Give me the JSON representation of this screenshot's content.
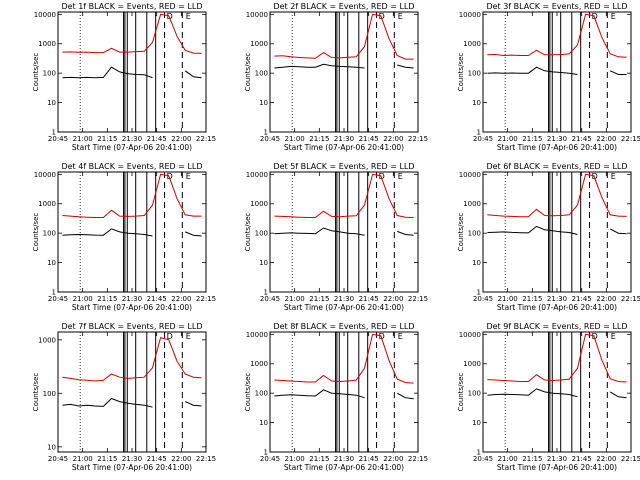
{
  "chart_data": [
    {
      "type": "line",
      "title": "Det 1f BLACK = Events, RED = LLD",
      "xlabel": "Start Time (07-Apr-06 20:41:00)",
      "ylabel": "Counts/sec",
      "x_ticks": [
        "20:45",
        "21:00",
        "21:15",
        "21:30",
        "21:45",
        "22:00",
        "22:15"
      ],
      "y_ticks": [
        "1",
        "10",
        "100",
        "1000",
        "10000"
      ],
      "ylim": [
        1,
        12000
      ],
      "log_y": true,
      "marker_labels": [
        "D",
        "E"
      ],
      "series": [
        {
          "color": "#d00000",
          "values": [
            520,
            530,
            510,
            520,
            500,
            500,
            700,
            520,
            520,
            540,
            560,
            1100,
            10000,
            9000,
            1800,
            600,
            480,
            470
          ]
        },
        {
          "color": "#000000",
          "values": [
            70,
            72,
            70,
            72,
            70,
            72,
            160,
            110,
            95,
            90,
            88,
            70,
            null,
            null,
            null,
            120,
            75,
            70
          ]
        }
      ]
    },
    {
      "type": "line",
      "title": "Det 2f BLACK = Events, RED = LLD",
      "xlabel": "Start Time (07-Apr-06 20:41:00)",
      "ylabel": "Counts/sec",
      "x_ticks": [
        "20:45",
        "21:00",
        "21:15",
        "21:30",
        "21:45",
        "22:00",
        "22:15"
      ],
      "y_ticks": [
        "1",
        "10",
        "100",
        "1000",
        "10000"
      ],
      "ylim": [
        1,
        12000
      ],
      "log_y": true,
      "marker_labels": [
        "D",
        "E"
      ],
      "series": [
        {
          "color": "#d00000",
          "values": [
            380,
            390,
            360,
            340,
            330,
            320,
            500,
            340,
            330,
            350,
            360,
            800,
            10000,
            9000,
            1500,
            400,
            300,
            300
          ]
        },
        {
          "color": "#000000",
          "values": [
            150,
            160,
            170,
            165,
            160,
            160,
            200,
            180,
            170,
            165,
            160,
            150,
            null,
            null,
            null,
            190,
            160,
            150
          ]
        }
      ]
    },
    {
      "type": "line",
      "title": "Det 3f BLACK = Events, RED = LLD",
      "xlabel": "Start Time (07-Apr-06 20:41:00)",
      "ylabel": "Counts/sec",
      "x_ticks": [
        "20:45",
        "21:00",
        "21:15",
        "21:30",
        "21:45",
        "22:00",
        "22:15"
      ],
      "y_ticks": [
        "1",
        "10",
        "100",
        "1000",
        "10000"
      ],
      "ylim": [
        1,
        12000
      ],
      "log_y": true,
      "marker_labels": [
        "D",
        "E"
      ],
      "series": [
        {
          "color": "#d00000",
          "values": [
            420,
            430,
            400,
            410,
            400,
            400,
            600,
            420,
            420,
            430,
            450,
            900,
            10000,
            9000,
            1600,
            450,
            360,
            350
          ]
        },
        {
          "color": "#000000",
          "values": [
            100,
            102,
            100,
            101,
            100,
            100,
            160,
            120,
            110,
            105,
            100,
            90,
            null,
            null,
            null,
            120,
            90,
            90
          ]
        }
      ]
    },
    {
      "type": "line",
      "title": "Det 4f BLACK = Events, RED = LLD",
      "xlabel": "Start Time (07-Apr-06 20:41:00)",
      "ylabel": "Counts/sec",
      "x_ticks": [
        "20:45",
        "21:00",
        "21:15",
        "21:30",
        "21:45",
        "22:00",
        "22:15"
      ],
      "y_ticks": [
        "1",
        "10",
        "100",
        "1000",
        "10000"
      ],
      "ylim": [
        1,
        12000
      ],
      "log_y": true,
      "marker_labels": [
        "D",
        "E"
      ],
      "series": [
        {
          "color": "#d00000",
          "values": [
            400,
            380,
            360,
            350,
            340,
            340,
            600,
            380,
            370,
            380,
            400,
            900,
            10000,
            9000,
            1500,
            420,
            380,
            380
          ]
        },
        {
          "color": "#000000",
          "values": [
            85,
            88,
            90,
            88,
            86,
            85,
            140,
            110,
            100,
            95,
            90,
            80,
            null,
            null,
            null,
            110,
            85,
            80
          ]
        }
      ]
    },
    {
      "type": "line",
      "title": "Det 5f BLACK = Events, RED = LLD",
      "xlabel": "Start Time (07-Apr-06 20:41:00)",
      "ylabel": "Counts/sec",
      "x_ticks": [
        "20:45",
        "21:00",
        "21:15",
        "21:30",
        "21:45",
        "22:00",
        "22:15"
      ],
      "y_ticks": [
        "1",
        "10",
        "100",
        "1000",
        "10000"
      ],
      "ylim": [
        1,
        12000
      ],
      "log_y": true,
      "marker_labels": [
        "D",
        "E"
      ],
      "series": [
        {
          "color": "#d00000",
          "values": [
            380,
            370,
            360,
            350,
            340,
            340,
            560,
            370,
            360,
            380,
            390,
            900,
            10000,
            9000,
            1500,
            400,
            350,
            340
          ]
        },
        {
          "color": "#000000",
          "values": [
            95,
            100,
            102,
            100,
            98,
            95,
            150,
            120,
            110,
            100,
            95,
            85,
            null,
            null,
            null,
            115,
            90,
            85
          ]
        }
      ]
    },
    {
      "type": "line",
      "title": "Det 6f BLACK = Events, RED = LLD",
      "xlabel": "Start Time (07-Apr-06 20:41:00)",
      "ylabel": "Counts/sec",
      "x_ticks": [
        "20:45",
        "21:00",
        "21:15",
        "21:30",
        "21:45",
        "22:00",
        "22:15"
      ],
      "y_ticks": [
        "1",
        "10",
        "100",
        "1000",
        "10000"
      ],
      "ylim": [
        1,
        12000
      ],
      "log_y": true,
      "marker_labels": [
        "D",
        "E"
      ],
      "series": [
        {
          "color": "#d00000",
          "values": [
            420,
            400,
            380,
            370,
            360,
            360,
            650,
            400,
            390,
            400,
            420,
            900,
            10000,
            9000,
            1600,
            420,
            380,
            370
          ]
        },
        {
          "color": "#000000",
          "values": [
            105,
            108,
            110,
            106,
            104,
            102,
            170,
            130,
            120,
            110,
            105,
            90,
            null,
            null,
            null,
            140,
            100,
            95
          ]
        }
      ]
    },
    {
      "type": "line",
      "title": "Det 7f BLACK = Events, RED = LLD",
      "xlabel": "Start Time (07-Apr-06 20:41:00)",
      "ylabel": "Counts/sec",
      "x_ticks": [
        "20:45",
        "21:00",
        "21:15",
        "21:30",
        "21:45",
        "22:00",
        "22:15"
      ],
      "y_ticks": [
        "10",
        "100",
        "1000"
      ],
      "ylim": [
        8,
        1400
      ],
      "log_y": true,
      "marker_labels": [
        "D",
        "E"
      ],
      "series": [
        {
          "color": "#d00000",
          "values": [
            200,
            190,
            180,
            175,
            170,
            175,
            230,
            200,
            190,
            195,
            200,
            300,
            1100,
            1000,
            400,
            230,
            200,
            195
          ]
        },
        {
          "color": "#000000",
          "values": [
            60,
            62,
            58,
            60,
            58,
            57,
            80,
            70,
            65,
            62,
            60,
            55,
            null,
            null,
            null,
            70,
            60,
            58
          ]
        }
      ]
    },
    {
      "type": "line",
      "title": "Det 8f BLACK = Events, RED = LLD",
      "xlabel": "Start Time (07-Apr-06 20:41:00)",
      "ylabel": "Counts/sec",
      "x_ticks": [
        "20:45",
        "21:00",
        "21:15",
        "21:30",
        "21:45",
        "22:00",
        "22:15"
      ],
      "y_ticks": [
        "1",
        "10",
        "100",
        "1000",
        "10000"
      ],
      "ylim": [
        1,
        12000
      ],
      "log_y": true,
      "marker_labels": [
        "D",
        "E"
      ],
      "series": [
        {
          "color": "#d00000",
          "values": [
            280,
            270,
            260,
            250,
            240,
            240,
            400,
            260,
            250,
            260,
            280,
            700,
            10000,
            9000,
            1300,
            300,
            230,
            220
          ]
        },
        {
          "color": "#000000",
          "values": [
            80,
            85,
            88,
            85,
            82,
            80,
            130,
            100,
            95,
            90,
            85,
            70,
            null,
            null,
            null,
            100,
            70,
            65
          ]
        }
      ]
    },
    {
      "type": "line",
      "title": "Det 9f BLACK = Events, RED = LLD",
      "xlabel": "Start Time (07-Apr-06 20:41:00)",
      "ylabel": "Counts/sec",
      "x_ticks": [
        "20:45",
        "21:00",
        "21:15",
        "21:30",
        "21:45",
        "22:00",
        "22:15"
      ],
      "y_ticks": [
        "1",
        "10",
        "100",
        "1000",
        "10000"
      ],
      "ylim": [
        1,
        12000
      ],
      "log_y": true,
      "marker_labels": [
        "D",
        "E"
      ],
      "series": [
        {
          "color": "#d00000",
          "values": [
            290,
            280,
            270,
            260,
            250,
            250,
            420,
            280,
            270,
            280,
            300,
            700,
            10000,
            9000,
            1300,
            310,
            250,
            240
          ]
        },
        {
          "color": "#000000",
          "values": [
            85,
            90,
            92,
            90,
            88,
            85,
            140,
            110,
            100,
            95,
            90,
            75,
            null,
            null,
            null,
            110,
            75,
            70
          ]
        }
      ]
    }
  ]
}
